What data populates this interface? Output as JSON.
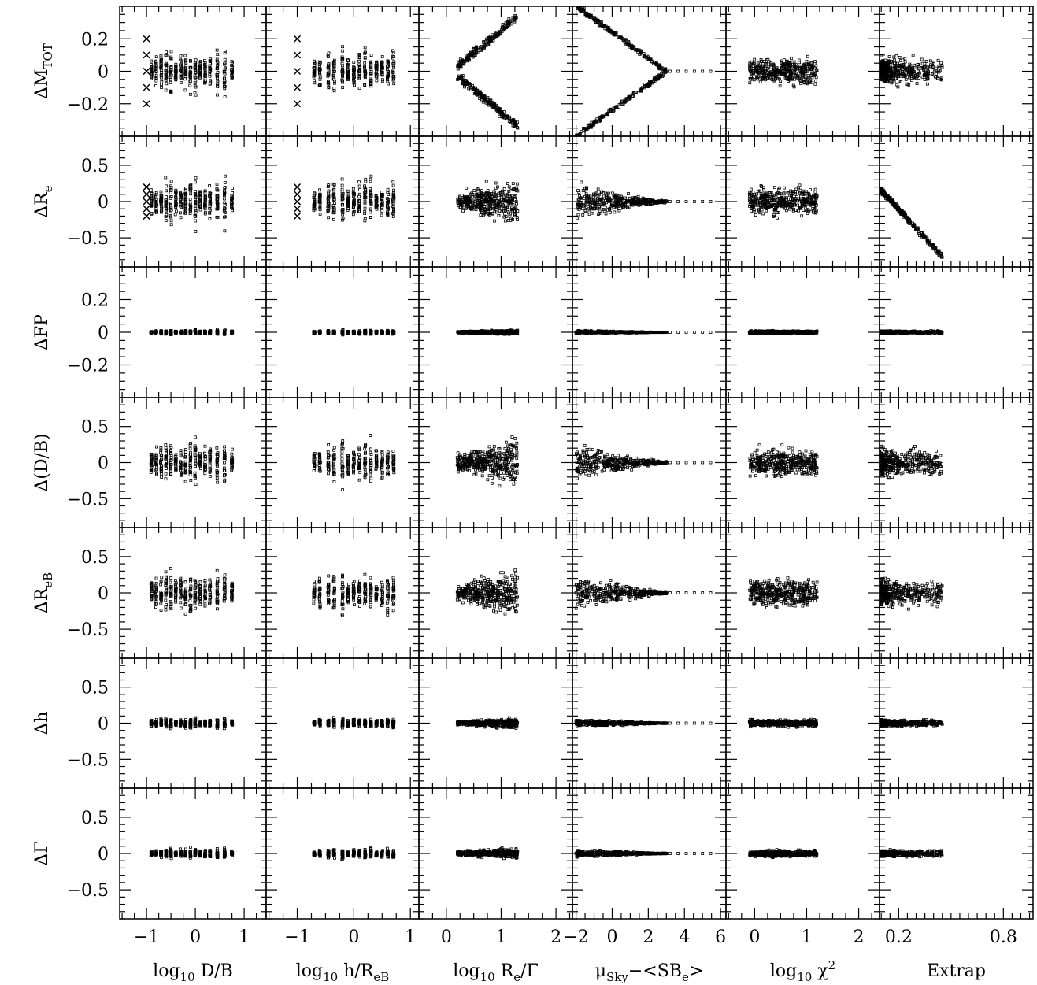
{
  "chart_data": {
    "type": "scatter",
    "layout": "matrix",
    "row_labels": [
      {
        "base": "ΔM",
        "sub": "TOT",
        "suffix": ""
      },
      {
        "base": "ΔR",
        "sub": "e",
        "suffix": ""
      },
      {
        "base": "ΔFP",
        "sub": "",
        "suffix": ""
      },
      {
        "base": "Δ(D/B)",
        "sub": "",
        "suffix": ""
      },
      {
        "base": "ΔR",
        "sub": "eB",
        "suffix": ""
      },
      {
        "base": "Δh",
        "sub": "",
        "suffix": ""
      },
      {
        "base": "ΔΓ",
        "sub": "",
        "suffix": ""
      }
    ],
    "row_ylim": [
      [
        -0.4,
        0.4
      ],
      [
        -0.9,
        0.9
      ],
      [
        -0.4,
        0.4
      ],
      [
        -0.9,
        0.9
      ],
      [
        -0.9,
        0.9
      ],
      [
        -0.9,
        0.9
      ],
      [
        -0.9,
        0.9
      ]
    ],
    "row_yticks": [
      [
        "0.2",
        "0",
        "−0.2"
      ],
      [
        "0.5",
        "0",
        "−0.5"
      ],
      [
        "0.2",
        "0",
        "−0.2"
      ],
      [
        "0.5",
        "0",
        "−0.5"
      ],
      [
        "0.5",
        "0",
        "−0.5"
      ],
      [
        "0.5",
        "0",
        "−0.5"
      ],
      [
        "0.5",
        "0",
        "−0.5"
      ]
    ],
    "row_ytick_values": [
      [
        0.2,
        0,
        -0.2
      ],
      [
        0.5,
        0,
        -0.5
      ],
      [
        0.2,
        0,
        -0.2
      ],
      [
        0.5,
        0,
        -0.5
      ],
      [
        0.5,
        0,
        -0.5
      ],
      [
        0.5,
        0,
        -0.5
      ],
      [
        0.5,
        0,
        -0.5
      ]
    ],
    "columns": [
      {
        "label_parts": [
          {
            "t": "log"
          },
          {
            "t": "10",
            "sub": true
          },
          {
            "t": " D/B"
          }
        ],
        "xlim": [
          -1.55,
          1.45
        ],
        "xticks": [
          -1,
          0,
          1
        ],
        "xtick_labels": [
          "−1",
          "0",
          "1"
        ]
      },
      {
        "label_parts": [
          {
            "t": "log"
          },
          {
            "t": "10",
            "sub": true
          },
          {
            "t": " h/R"
          },
          {
            "t": "eB",
            "sub": true
          }
        ],
        "xlim": [
          -1.55,
          1.15
        ],
        "xticks": [
          -1,
          0,
          1
        ],
        "xtick_labels": [
          "−1",
          "0",
          "1"
        ]
      },
      {
        "label_parts": [
          {
            "t": "log"
          },
          {
            "t": "10",
            "sub": true
          },
          {
            "t": " R"
          },
          {
            "t": "e",
            "sub": true
          },
          {
            "t": "/Γ"
          }
        ],
        "xlim": [
          -0.5,
          2.3
        ],
        "xticks": [
          0,
          1,
          2
        ],
        "xtick_labels": [
          "0",
          "1",
          "2"
        ]
      },
      {
        "label_parts": [
          {
            "t": "μ"
          },
          {
            "t": "Sky",
            "sub": true
          },
          {
            "t": "−<SB"
          },
          {
            "t": "e",
            "sub": true
          },
          {
            "t": ">"
          }
        ],
        "xlim": [
          -2.2,
          6.3
        ],
        "xticks": [
          -2,
          0,
          2,
          4,
          6
        ],
        "xtick_labels": [
          "−2",
          "0",
          "2",
          "4",
          "6"
        ]
      },
      {
        "label_parts": [
          {
            "t": "log"
          },
          {
            "t": "10",
            "sub": true
          },
          {
            "t": " χ"
          },
          {
            "t": "2",
            "sup": true
          }
        ],
        "xlim": [
          -0.55,
          2.4
        ],
        "xticks": [
          0,
          1,
          2
        ],
        "xtick_labels": [
          "0",
          "1",
          "2"
        ]
      },
      {
        "label_parts": [
          {
            "t": "Extrap"
          }
        ],
        "xlim": [
          0.09,
          0.97
        ],
        "xticks": [
          0.2,
          0.8
        ],
        "xtick_labels": [
          "0.2",
          "0.8"
        ]
      }
    ],
    "markers": [
      "small open squares",
      "crosses",
      "tripod arrows"
    ]
  }
}
